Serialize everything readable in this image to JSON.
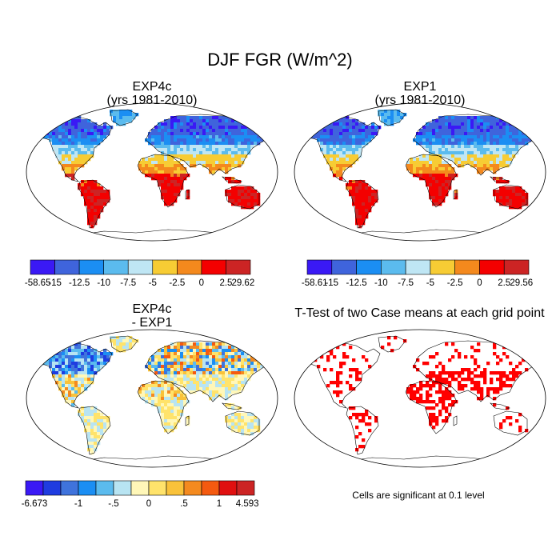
{
  "figure": {
    "title": "DJF FGR (W/m^2)"
  },
  "chart_data": [
    {
      "type": "heatmap",
      "panel": "top-left",
      "title_line1": "EXP4c",
      "title_line2": "(yrs 1981-2010)",
      "colorbar": {
        "colors": [
          "#3a19f5",
          "#3f64dc",
          "#1b8ef3",
          "#5bbbee",
          "#bfe6f4",
          "#f7cc34",
          "#f4891d",
          "#f40000",
          "#cc2424"
        ],
        "tick_labels": [
          "-58.65",
          "-15",
          "-12.5",
          "-10",
          "-7.5",
          "-5",
          "-2.5",
          "0",
          "2.5",
          "29.62"
        ]
      }
    },
    {
      "type": "heatmap",
      "panel": "top-right",
      "title_line1": "EXP1",
      "title_line2": "(yrs 1981-2010)",
      "colorbar": {
        "colors": [
          "#3a19f5",
          "#3f64dc",
          "#1b8ef3",
          "#5bbbee",
          "#bfe6f4",
          "#f7cc34",
          "#f4891d",
          "#f40000",
          "#cc2424"
        ],
        "tick_labels": [
          "-58.61",
          "-15",
          "-12.5",
          "-10",
          "-7.5",
          "-5",
          "-2.5",
          "0",
          "2.5",
          "29.56"
        ]
      }
    },
    {
      "type": "heatmap",
      "panel": "bottom-left",
      "title_line1": "EXP4c",
      "title_line2": "- EXP1",
      "colorbar": {
        "colors": [
          "#3a19f5",
          "#1f3ce0",
          "#3f73dc",
          "#1b8ef3",
          "#5bbbee",
          "#b8e4f2",
          "#fff7b8",
          "#ffe36b",
          "#f9c23a",
          "#f48a1f",
          "#f45a10",
          "#e01010",
          "#cc2424"
        ],
        "tick_labels": [
          "-6.673",
          "-1",
          "-.5",
          "0",
          ".5",
          "1",
          "4.593"
        ]
      }
    },
    {
      "type": "heatmap",
      "panel": "bottom-right",
      "title": "T-Test of two Case means at each grid point",
      "significance_color": "#ff0000",
      "note": "Cells are significant at 0.1 level"
    }
  ]
}
